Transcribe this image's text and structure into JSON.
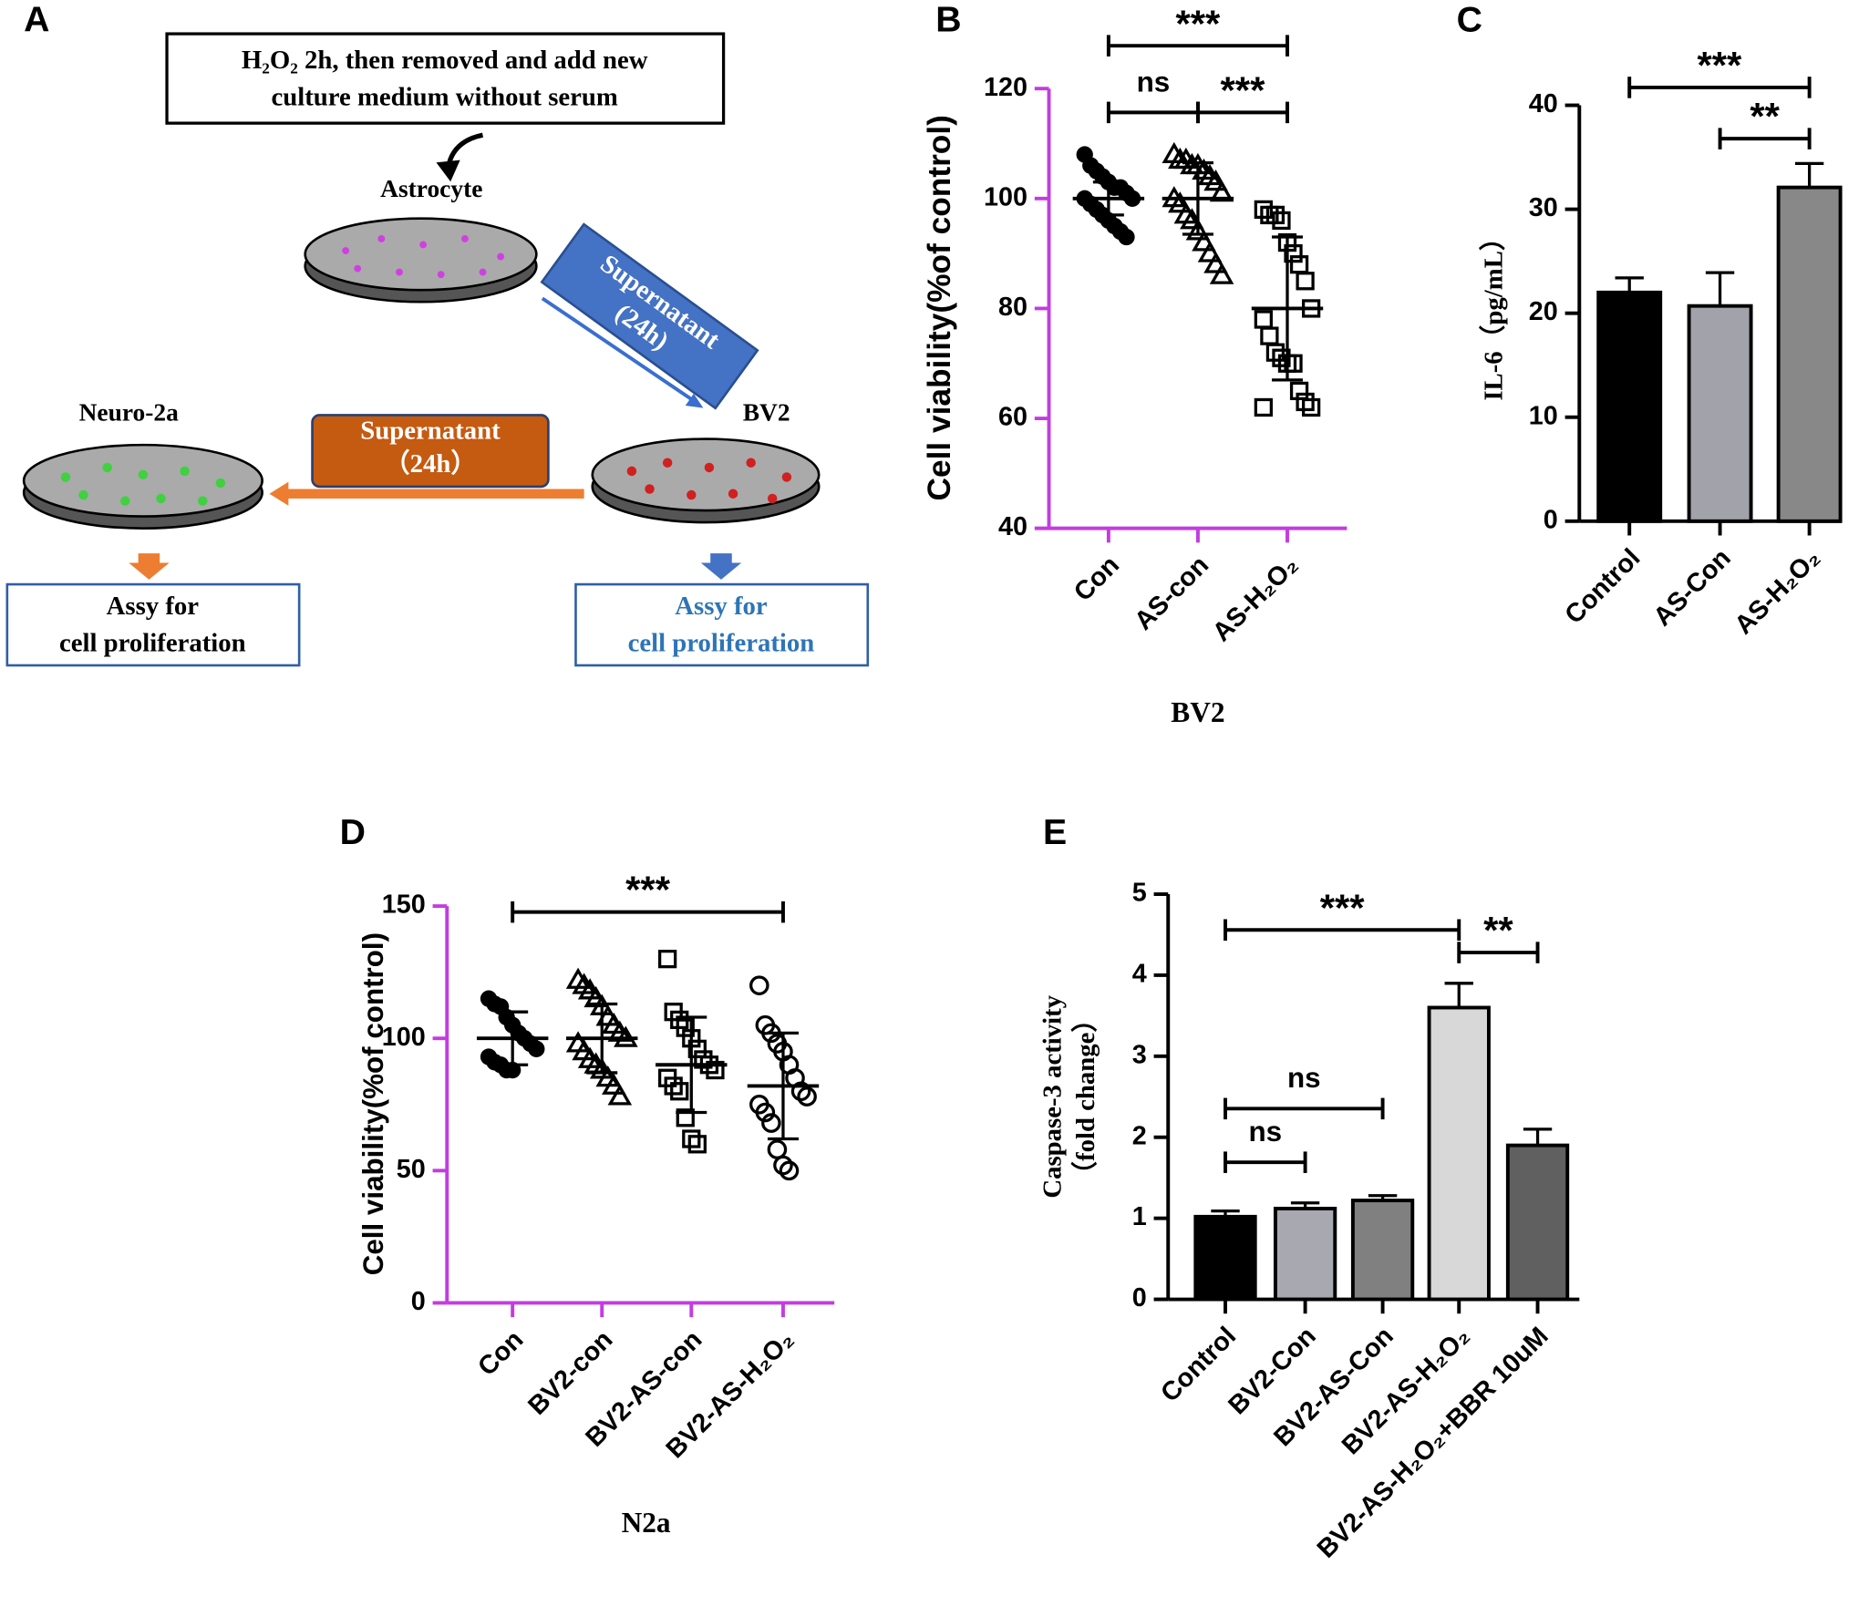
{
  "diagram": {
    "panel": "A",
    "top_box": [
      "H₂O₂ 2h, then removed and add new",
      "culture medium without serum"
    ],
    "astrocyte": "Astrocyte",
    "blue_arrow": [
      "Supernatant",
      "(24h)"
    ],
    "bv2": "BV2",
    "orange_arrow": [
      "Supernatant",
      "（24h）"
    ],
    "neuro": "Neuro-2a",
    "left_box": [
      "Assy for",
      "cell proliferation"
    ],
    "right_box": [
      "Assy for",
      "cell proliferation"
    ]
  },
  "chart_data": [
    {
      "type": "strip",
      "panel": "B",
      "categories": [
        "Con",
        "AS-con",
        "AS-H₂O₂"
      ],
      "y_label": "Cell viability(%of control)",
      "x_title": "BV2",
      "ylim": [
        40,
        120
      ],
      "yticks": [
        40,
        60,
        80,
        100,
        120
      ],
      "axis_color": "#c23ddf",
      "series": [
        {
          "name": "Con",
          "marker": "filled-circle",
          "values": [
            108,
            106,
            105,
            104,
            103,
            102,
            102,
            101,
            100,
            100,
            99,
            98,
            97,
            96,
            95,
            94,
            93
          ],
          "mean": 100,
          "sd": 3
        },
        {
          "name": "AS-con",
          "marker": "open-triangle",
          "values": [
            108,
            107,
            107,
            106,
            106,
            105,
            104,
            103,
            101,
            100,
            99,
            97,
            96,
            94,
            92,
            90,
            88,
            86
          ],
          "mean": 100,
          "sd": 6.5
        },
        {
          "name": "AS-H₂O₂",
          "marker": "open-square",
          "values": [
            98,
            97,
            97,
            96,
            92,
            90,
            88,
            85,
            80,
            78,
            75,
            72,
            71,
            70,
            70,
            65,
            63,
            62,
            62
          ],
          "mean": 80,
          "sd": 13
        }
      ],
      "annotations": [
        {
          "text": "***",
          "between": [
            "Con",
            "AS-H₂O₂"
          ]
        },
        {
          "text": "ns",
          "between": [
            "Con",
            "AS-con"
          ]
        },
        {
          "text": "***",
          "between": [
            "AS-con",
            "AS-H₂O₂"
          ]
        }
      ]
    },
    {
      "type": "bar",
      "panel": "C",
      "categories": [
        "Control",
        "AS-Con",
        "AS-H₂O₂"
      ],
      "y_label": "IL-6（pg/mL）",
      "values": [
        22,
        20.7,
        32.1
      ],
      "errors": [
        1.4,
        3.2,
        2.3
      ],
      "colors": [
        "#000000",
        "#a2a2aa",
        "#888888"
      ],
      "ylim": [
        0,
        40
      ],
      "yticks": [
        0,
        10,
        20,
        30,
        40
      ],
      "axis_color": "#000000",
      "annotations": [
        {
          "text": "***",
          "between": [
            "Control",
            "AS-H₂O₂"
          ]
        },
        {
          "text": "**",
          "between": [
            "AS-Con",
            "AS-H₂O₂"
          ]
        }
      ]
    },
    {
      "type": "strip",
      "panel": "D",
      "categories": [
        "Con",
        "BV2-con",
        "BV2-AS-con",
        "BV2-AS-H₂O₂"
      ],
      "y_label": "Cell viability(%of control)",
      "x_title": "N2a",
      "ylim": [
        0,
        150
      ],
      "yticks": [
        0,
        50,
        100,
        150
      ],
      "axis_color": "#c23ddf",
      "series": [
        {
          "name": "Con",
          "marker": "filled-circle",
          "values": [
            115,
            113,
            112,
            108,
            105,
            102,
            100,
            98,
            96,
            93,
            91,
            90,
            88,
            88
          ]
        },
        {
          "name": "BV2-con",
          "marker": "open-triangle",
          "values": [
            122,
            120,
            118,
            115,
            112,
            108,
            105,
            102,
            100,
            98,
            95,
            92,
            90,
            88,
            85,
            82,
            78
          ]
        },
        {
          "name": "BV2-AS-con",
          "marker": "open-square",
          "values": [
            130,
            110,
            107,
            104,
            100,
            96,
            92,
            90,
            88,
            85,
            82,
            80,
            70,
            62,
            60
          ]
        },
        {
          "name": "BV2-AS-H₂O₂",
          "marker": "open-circle",
          "values": [
            120,
            105,
            102,
            98,
            95,
            90,
            85,
            80,
            78,
            75,
            72,
            68,
            58,
            52,
            50
          ]
        }
      ],
      "means": [
        100,
        100,
        90,
        82
      ],
      "sds": [
        10,
        13,
        18,
        20
      ],
      "annotations": [
        {
          "text": "***",
          "between": [
            "Con",
            "BV2-AS-H₂O₂"
          ]
        }
      ]
    },
    {
      "type": "bar",
      "panel": "E",
      "categories": [
        "Control",
        "BV2-Con",
        "BV2-AS-Con",
        "BV2-AS-H₂O₂",
        "BV2-AS-H₂O₂+BBR 10uM"
      ],
      "y_label": [
        "Caspase-3 activity",
        "（fold change）"
      ],
      "values": [
        1.02,
        1.12,
        1.22,
        3.6,
        1.9
      ],
      "errors": [
        0.07,
        0.07,
        0.06,
        0.3,
        0.2
      ],
      "colors": [
        "#000000",
        "#a8a8b0",
        "#808080",
        "#d8d8d8",
        "#606060"
      ],
      "ylim": [
        0,
        5
      ],
      "yticks": [
        0,
        1,
        2,
        3,
        4,
        5
      ],
      "axis_color": "#000000",
      "annotations": [
        {
          "text": "***",
          "between": [
            "Control",
            "BV2-AS-H₂O₂"
          ]
        },
        {
          "text": "**",
          "between": [
            "BV2-AS-H₂O₂",
            "BV2-AS-H₂O₂+BBR 10uM"
          ]
        },
        {
          "text": "ns",
          "between": [
            "Control",
            "BV2-AS-Con"
          ]
        },
        {
          "text": "ns",
          "between": [
            "Control",
            "BV2-Con"
          ]
        }
      ]
    }
  ]
}
